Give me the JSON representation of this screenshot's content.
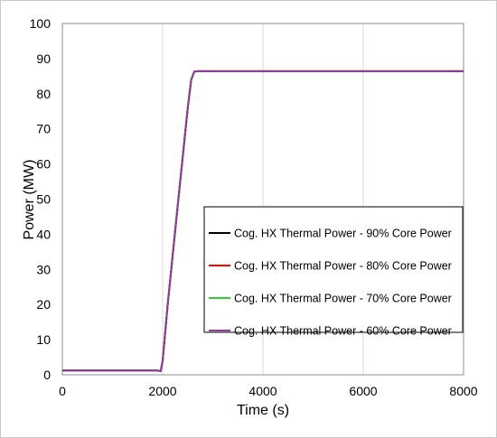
{
  "chart_data": {
    "type": "line",
    "title": "",
    "xlabel": "Time (s)",
    "ylabel": "Power (MW)",
    "xlim": [
      0,
      8000
    ],
    "ylim": [
      0,
      100
    ],
    "xticks": [
      "0",
      "2000",
      "4000",
      "6000",
      "8000"
    ],
    "yticks": [
      "0",
      "10",
      "20",
      "30",
      "40",
      "50",
      "60",
      "70",
      "80",
      "90",
      "100"
    ],
    "grid": "vertical",
    "legend_position": "center-right",
    "series": [
      {
        "name": "Cog. HX Thermal Power - 90% Core Power",
        "color": "#000000",
        "points": [
          [
            0,
            1.2
          ],
          [
            1900,
            1.2
          ],
          [
            1960,
            1.0
          ],
          [
            2000,
            4.0
          ],
          [
            2100,
            20.0
          ],
          [
            2300,
            48.0
          ],
          [
            2500,
            76.0
          ],
          [
            2570,
            84.0
          ],
          [
            2630,
            86.3
          ],
          [
            2700,
            86.4
          ],
          [
            8000,
            86.4
          ]
        ]
      },
      {
        "name": "Cog. HX Thermal Power - 80% Core Power",
        "color": "#ff0000",
        "points": [
          [
            0,
            1.2
          ],
          [
            1900,
            1.2
          ],
          [
            1960,
            1.0
          ],
          [
            2000,
            4.0
          ],
          [
            2100,
            20.0
          ],
          [
            2300,
            48.0
          ],
          [
            2500,
            76.0
          ],
          [
            2570,
            84.0
          ],
          [
            2630,
            86.3
          ],
          [
            2700,
            86.4
          ],
          [
            8000,
            86.4
          ]
        ]
      },
      {
        "name": "Cog. HX Thermal Power - 70% Core Power",
        "color": "#33cc33",
        "points": [
          [
            0,
            1.2
          ],
          [
            1900,
            1.2
          ],
          [
            1960,
            1.0
          ],
          [
            2000,
            4.0
          ],
          [
            2100,
            20.0
          ],
          [
            2300,
            48.0
          ],
          [
            2500,
            76.0
          ],
          [
            2570,
            84.0
          ],
          [
            2630,
            86.3
          ],
          [
            2700,
            86.4
          ],
          [
            8000,
            86.4
          ]
        ]
      },
      {
        "name": "Cog. HX Thermal Power - 60% Core Power",
        "color": "#8e3a9f",
        "points": [
          [
            0,
            1.2
          ],
          [
            1900,
            1.2
          ],
          [
            1960,
            1.0
          ],
          [
            2000,
            4.0
          ],
          [
            2100,
            20.0
          ],
          [
            2300,
            48.0
          ],
          [
            2500,
            76.0
          ],
          [
            2570,
            84.0
          ],
          [
            2630,
            86.3
          ],
          [
            2700,
            86.4
          ],
          [
            8000,
            86.4
          ]
        ]
      }
    ]
  }
}
